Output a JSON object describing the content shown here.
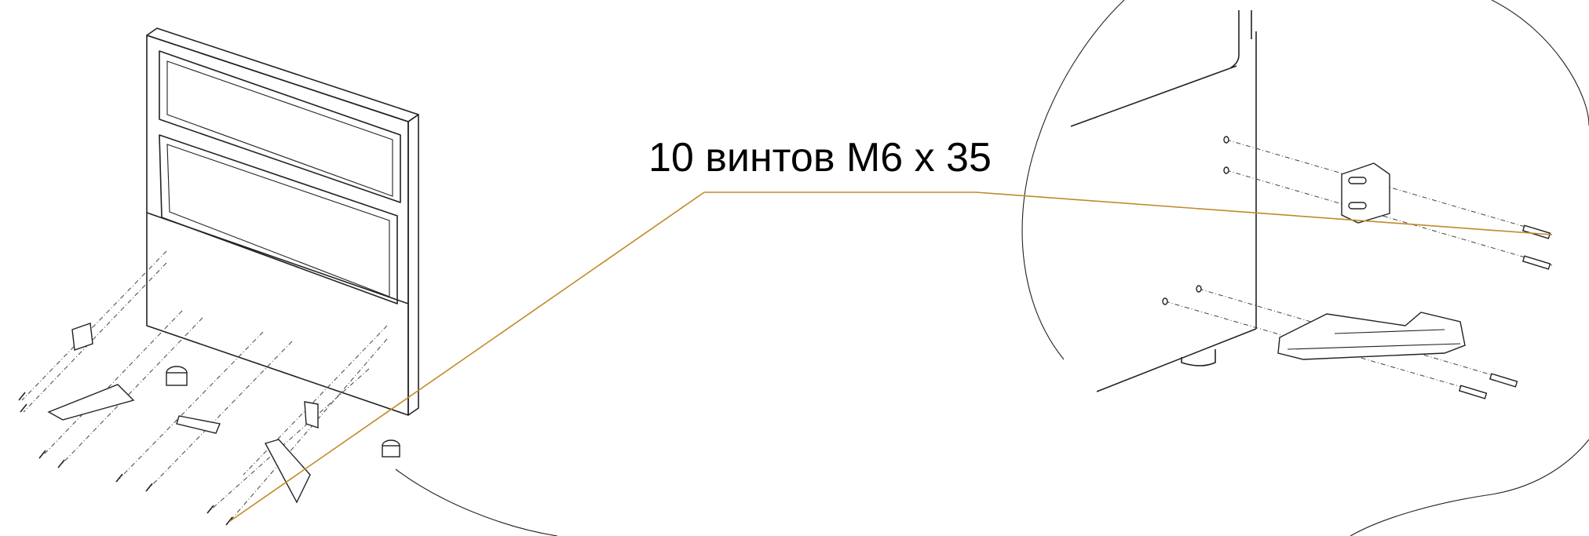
{
  "annotation": {
    "text": "10 винтов M6 x 35"
  }
}
